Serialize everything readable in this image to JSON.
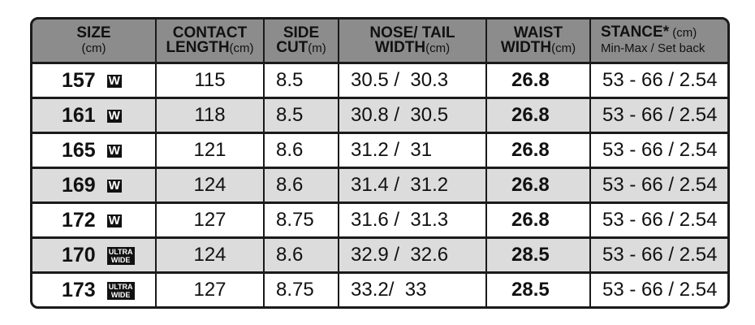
{
  "table": {
    "header": [
      {
        "lines": [
          [
            {
              "text": "SIZE",
              "bold": true
            }
          ],
          [
            {
              "text": "(cm)",
              "bold": false
            }
          ]
        ]
      },
      {
        "lines": [
          [
            {
              "text": "CONTACT",
              "bold": true
            }
          ],
          [
            {
              "text": "LENGTH",
              "bold": true
            },
            {
              "text": "(cm)",
              "bold": false
            }
          ]
        ]
      },
      {
        "lines": [
          [
            {
              "text": "SIDE",
              "bold": true
            }
          ],
          [
            {
              "text": "CUT",
              "bold": true
            },
            {
              "text": "(m)",
              "bold": false
            }
          ]
        ]
      },
      {
        "lines": [
          [
            {
              "text": "NOSE/ TAIL",
              "bold": true
            }
          ],
          [
            {
              "text": "WIDTH",
              "bold": true
            },
            {
              "text": "(cm)",
              "bold": false
            }
          ]
        ]
      },
      {
        "lines": [
          [
            {
              "text": "WAIST",
              "bold": true
            }
          ],
          [
            {
              "text": "WIDTH",
              "bold": true
            },
            {
              "text": "(cm)",
              "bold": false
            }
          ]
        ]
      },
      {
        "lines": [
          [
            {
              "text": "STANCE*",
              "bold": true
            },
            {
              "text": " (cm)",
              "bold": false
            }
          ],
          [
            {
              "text": "Min-Max / Set back",
              "bold": false
            }
          ]
        ]
      }
    ],
    "rows": [
      {
        "size": "157",
        "badge": [
          "W"
        ],
        "cells": [
          "115",
          "8.5",
          "30.5 /  30.3",
          "26.8",
          "53 - 66 / 2.54"
        ]
      },
      {
        "size": "161",
        "badge": [
          "W"
        ],
        "cells": [
          "118",
          "8.5",
          "30.8 /  30.5",
          "26.8",
          "53 - 66 / 2.54"
        ]
      },
      {
        "size": "165",
        "badge": [
          "W"
        ],
        "cells": [
          "121",
          "8.6",
          "31.2 /  31",
          "26.8",
          "53 - 66 / 2.54"
        ]
      },
      {
        "size": "169",
        "badge": [
          "W"
        ],
        "cells": [
          "124",
          "8.6",
          "31.4 /  31.2",
          "26.8",
          "53 - 66 / 2.54"
        ]
      },
      {
        "size": "172",
        "badge": [
          "W"
        ],
        "cells": [
          "127",
          "8.75",
          "31.6 /  31.3",
          "26.8",
          "53 - 66 / 2.54"
        ]
      },
      {
        "size": "170",
        "badge": [
          "ULTRA",
          "WIDE"
        ],
        "cells": [
          "124",
          "8.6",
          "32.9 /  32.6",
          "28.5",
          "53 - 66 / 2.54"
        ]
      },
      {
        "size": "173",
        "badge": [
          "ULTRA",
          "WIDE"
        ],
        "cells": [
          "127",
          "8.75",
          "33.2/  33",
          "28.5",
          "53 - 66 / 2.54"
        ]
      }
    ]
  }
}
